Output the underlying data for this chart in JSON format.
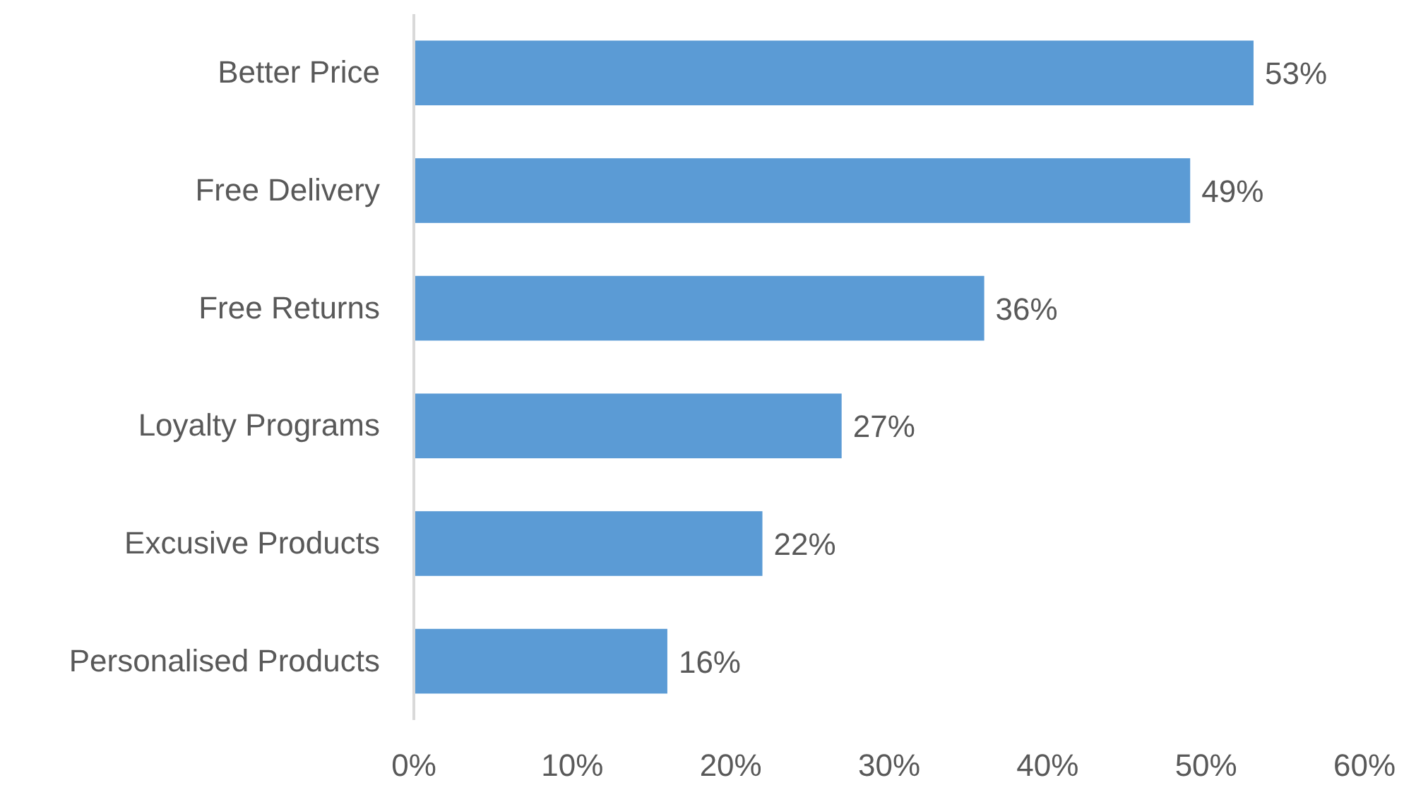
{
  "chart_data": {
    "type": "bar",
    "orientation": "horizontal",
    "categories": [
      "Better Price",
      "Free Delivery",
      "Free Returns",
      "Loyalty Programs",
      "Excusive Products",
      "Personalised Products"
    ],
    "values": [
      53,
      49,
      36,
      27,
      22,
      16
    ],
    "value_labels": [
      "53%",
      "49%",
      "36%",
      "27%",
      "22%",
      "16%"
    ],
    "color": "#5b9bd5",
    "xlim": [
      0,
      60
    ],
    "xticks": [
      {
        "value": 0,
        "label": "0%"
      },
      {
        "value": 10,
        "label": "10%"
      },
      {
        "value": 20,
        "label": "20%"
      },
      {
        "value": 30,
        "label": "30%"
      },
      {
        "value": 40,
        "label": "40%"
      },
      {
        "value": 50,
        "label": "50%"
      },
      {
        "value": 60,
        "label": "60%"
      }
    ]
  }
}
